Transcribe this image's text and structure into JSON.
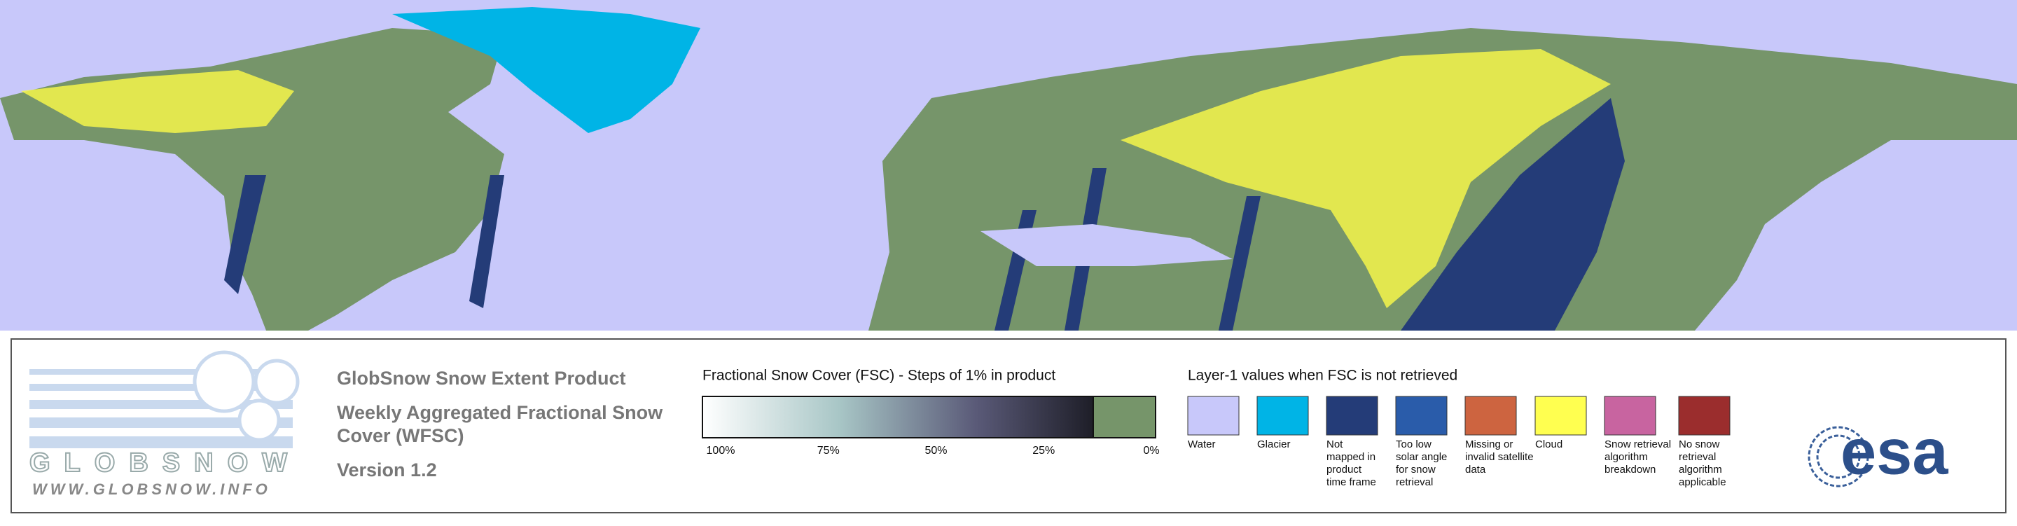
{
  "logo": {
    "name": "GLOBSNOW",
    "url": "WWW.GLOBSNOW.INFO"
  },
  "product": {
    "title": "GlobSnow Snow Extent Product",
    "subtitle_lines": [
      "Weekly Aggregated Fractional Snow",
      "Cover (WFSC)"
    ],
    "version": "Version 1.2"
  },
  "fsc_legend": {
    "title": "Fractional Snow Cover (FSC) - Steps of 1% in product",
    "ticks": [
      "100%",
      "75%",
      "50%",
      "25%",
      "0%"
    ]
  },
  "layer1_legend": {
    "title": "Layer-1 values when FSC is not retrieved",
    "classes": [
      {
        "label_lines": [
          "Water"
        ],
        "color": "#c8c8fa"
      },
      {
        "label_lines": [
          "Glacier"
        ],
        "color": "#00b4e6"
      },
      {
        "label_lines": [
          "Not",
          "mapped in",
          "product",
          "time frame"
        ],
        "color": "#243c78"
      },
      {
        "label_lines": [
          "Too low",
          "solar angle",
          "for snow",
          "retrieval"
        ],
        "color": "#2a5caa"
      },
      {
        "label_lines": [
          "Missing or",
          "invalid satellite",
          "data"
        ],
        "color": "#cd6440"
      },
      {
        "label_lines": [
          "Cloud"
        ],
        "color": "#ffff50"
      },
      {
        "label_lines": [
          "Snow retrieval",
          "algorithm",
          "breakdown"
        ],
        "color": "#c864a0"
      },
      {
        "label_lines": [
          "No snow",
          "retrieval",
          "algorithm",
          "applicable"
        ],
        "color": "#9b2d2d"
      }
    ]
  },
  "agency": "esa"
}
